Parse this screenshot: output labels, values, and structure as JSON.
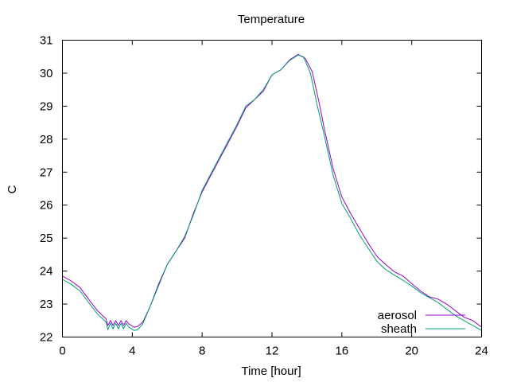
{
  "chart_data": {
    "type": "line",
    "title": "Temperature",
    "xlabel": "Time [hour]",
    "ylabel": "C",
    "xlim": [
      0,
      24
    ],
    "ylim": [
      22,
      31
    ],
    "xticks": [
      0,
      4,
      8,
      12,
      16,
      20,
      24
    ],
    "yticks": [
      22,
      23,
      24,
      25,
      26,
      27,
      28,
      29,
      30,
      31
    ],
    "grid": false,
    "legend_position": "bottom-right",
    "series": [
      {
        "name": "aerosol",
        "color": "#9400d3",
        "x": [
          0,
          0.5,
          1,
          1.5,
          2,
          2.5,
          2.6,
          2.75,
          2.9,
          3.05,
          3.2,
          3.35,
          3.5,
          3.65,
          3.8,
          3.95,
          4.1,
          4.3,
          4.6,
          5,
          5.5,
          6,
          6.5,
          7,
          7.5,
          8,
          8.5,
          9,
          9.5,
          10,
          10.5,
          11,
          11.5,
          12,
          12.5,
          13,
          13.5,
          13.9,
          14.3,
          14.7,
          15,
          15.5,
          16,
          16.5,
          17,
          17.5,
          18,
          18.5,
          19,
          19.5,
          20,
          20.5,
          21,
          21.5,
          22,
          22.5,
          23,
          23.5,
          24
        ],
        "y": [
          23.85,
          23.7,
          23.5,
          23.15,
          22.8,
          22.55,
          22.35,
          22.5,
          22.35,
          22.5,
          22.35,
          22.5,
          22.35,
          22.5,
          22.4,
          22.35,
          22.3,
          22.32,
          22.45,
          22.9,
          23.6,
          24.2,
          24.6,
          25.0,
          25.75,
          26.4,
          26.9,
          27.4,
          27.9,
          28.4,
          28.95,
          29.2,
          29.45,
          29.95,
          30.1,
          30.4,
          30.57,
          30.45,
          30.05,
          29.1,
          28.3,
          27.1,
          26.25,
          25.75,
          25.3,
          24.85,
          24.45,
          24.2,
          23.98,
          23.85,
          23.62,
          23.4,
          23.22,
          23.15,
          23.0,
          22.8,
          22.6,
          22.5,
          22.3
        ]
      },
      {
        "name": "sheath",
        "color": "#009e73",
        "x": [
          0,
          0.5,
          1,
          1.5,
          2,
          2.5,
          2.6,
          2.75,
          2.9,
          3.05,
          3.2,
          3.35,
          3.5,
          3.65,
          3.8,
          3.95,
          4.1,
          4.3,
          4.6,
          5,
          5.5,
          6,
          6.5,
          7,
          7.5,
          8,
          8.5,
          9,
          9.5,
          10,
          10.5,
          11,
          11.5,
          12,
          12.5,
          13,
          13.5,
          13.8,
          14.2,
          14.6,
          15,
          15.5,
          16,
          16.5,
          17,
          17.5,
          18,
          18.5,
          19,
          19.5,
          20,
          20.5,
          21,
          21.5,
          22,
          22.5,
          23,
          23.5,
          24
        ],
        "y": [
          23.75,
          23.6,
          23.4,
          23.05,
          22.7,
          22.45,
          22.22,
          22.42,
          22.25,
          22.42,
          22.25,
          22.42,
          22.25,
          22.42,
          22.3,
          22.25,
          22.2,
          22.22,
          22.4,
          22.9,
          23.55,
          24.2,
          24.6,
          25.05,
          25.7,
          26.45,
          26.95,
          27.45,
          27.95,
          28.45,
          29.0,
          29.2,
          29.5,
          29.95,
          30.1,
          30.38,
          30.55,
          30.5,
          30.0,
          29.0,
          28.1,
          26.9,
          26.05,
          25.6,
          25.1,
          24.7,
          24.3,
          24.05,
          23.88,
          23.72,
          23.55,
          23.35,
          23.2,
          23.05,
          22.85,
          22.65,
          22.5,
          22.35,
          22.2
        ]
      }
    ]
  }
}
